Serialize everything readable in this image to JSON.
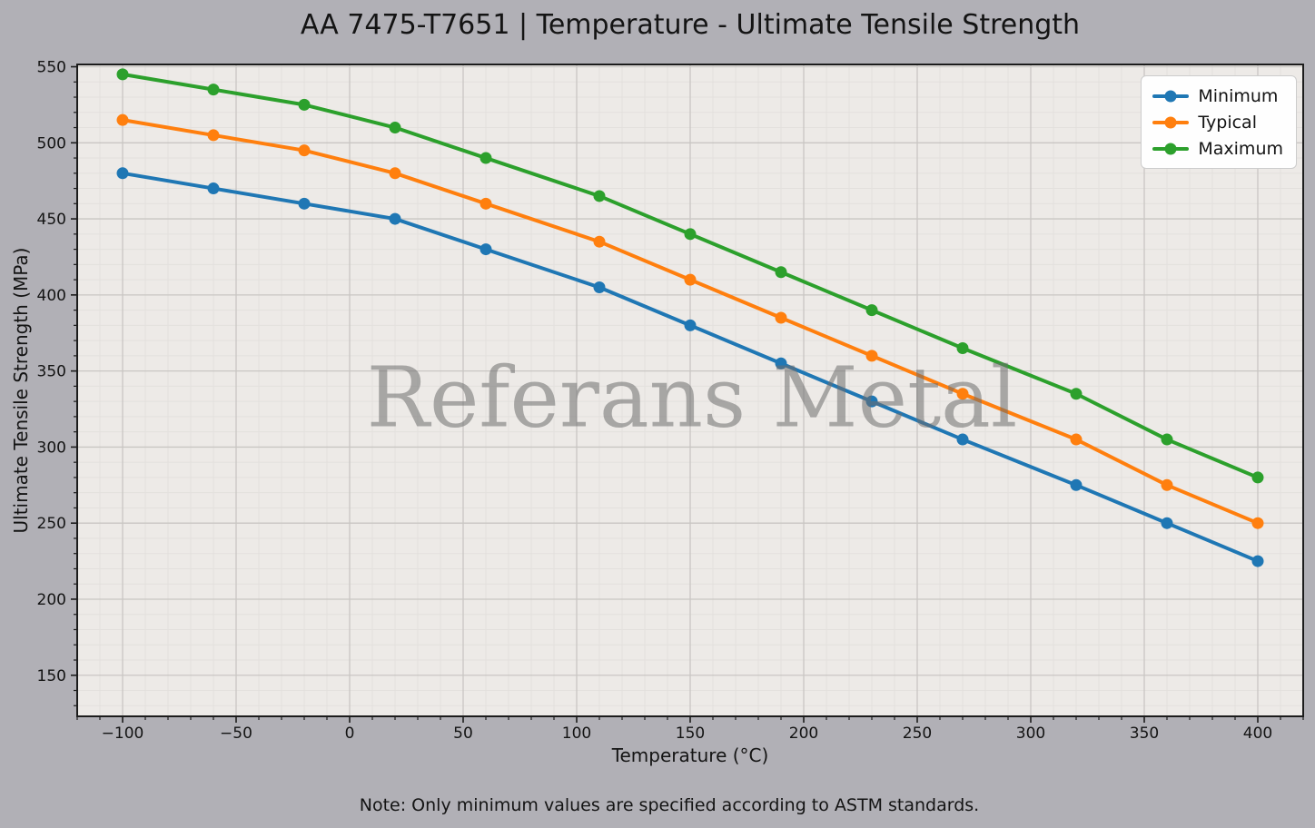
{
  "figure": {
    "title": "AA 7475-T7651 | Temperature - Ultimate Tensile Strength",
    "note": "Note: Only minimum values are specified according to ASTM standards.",
    "watermark": "Referans Metal"
  },
  "chart_data": {
    "type": "line",
    "title": "AA 7475-T7651 | Temperature - Ultimate Tensile Strength",
    "xlabel": "Temperature (°C)",
    "ylabel": "Ultimate Tensile Strength (MPa)",
    "x": [
      -100,
      -60,
      -20,
      20,
      60,
      110,
      150,
      190,
      230,
      270,
      320,
      360,
      400
    ],
    "series": [
      {
        "name": "Minimum",
        "color": "#1f77b4",
        "values": [
          480,
          470,
          460,
          450,
          430,
          405,
          380,
          355,
          330,
          305,
          275,
          250,
          225
        ]
      },
      {
        "name": "Typical",
        "color": "#ff7f0e",
        "values": [
          515,
          505,
          495,
          480,
          460,
          435,
          410,
          385,
          360,
          335,
          305,
          275,
          250
        ]
      },
      {
        "name": "Maximum",
        "color": "#2ca02c",
        "values": [
          545,
          535,
          525,
          510,
          490,
          465,
          440,
          415,
          390,
          365,
          335,
          305,
          280
        ]
      }
    ],
    "xlim": [
      -120,
      420
    ],
    "ylim": [
      123,
      551.5
    ],
    "x_tick_values": [
      -100,
      -50,
      0,
      50,
      100,
      150,
      200,
      250,
      300,
      350,
      400
    ],
    "x_tick_labels": [
      "−100",
      "−50",
      "0",
      "50",
      "100",
      "150",
      "200",
      "250",
      "300",
      "350",
      "400"
    ],
    "y_tick_values": [
      150,
      200,
      250,
      300,
      350,
      400,
      450,
      500,
      550
    ],
    "y_tick_labels": [
      "150",
      "200",
      "250",
      "300",
      "350",
      "400",
      "450",
      "500",
      "550"
    ],
    "minor_tick_step": 10,
    "grid": "major+minor",
    "legend_position": "upper right"
  },
  "colors": {
    "figure_bg": "#b1b0b6",
    "plot_bg": "#edeae7",
    "grid_major": "#c9c6c3",
    "grid_minor": "#e3e0dd",
    "spine": "#1c1c1c",
    "tick": "#1c1c1c",
    "text": "#141414",
    "watermark": "#6e6e6e",
    "legend_bg": "#fefefe",
    "legend_border": "#cccccc"
  }
}
